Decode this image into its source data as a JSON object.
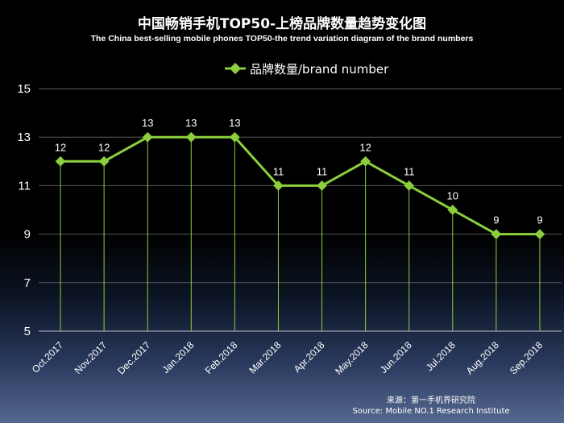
{
  "chart_data": {
    "type": "line",
    "title": "中国畅销手机TOP50-上榜品牌数量趋势变化图",
    "subtitle": "The China best-selling mobile phones TOP50-the trend variation diagram of the brand numbers",
    "categories": [
      "Oct.2017",
      "Nov.2017",
      "Dec.2017",
      "Jan.2018",
      "Feb.2018",
      "Mar.2018",
      "Apr.2018",
      "May.2018",
      "Jun.2018",
      "Jul.2018",
      "Aug.2018",
      "Sep.2018"
    ],
    "series": [
      {
        "name": "品牌数量/brand number",
        "values": [
          12,
          12,
          13,
          13,
          13,
          11,
          11,
          12,
          11,
          10,
          9,
          9
        ]
      }
    ],
    "ylim": [
      5,
      15
    ],
    "yticks": [
      "5",
      "7",
      "9",
      "11",
      "13",
      "15"
    ],
    "grid": true,
    "legend_position": "top-center",
    "line_color": "#8ccf3d"
  },
  "source": {
    "cn": "来源：第一手机界研究院",
    "en": "Source: Mobile NO.1 Research Institute"
  }
}
